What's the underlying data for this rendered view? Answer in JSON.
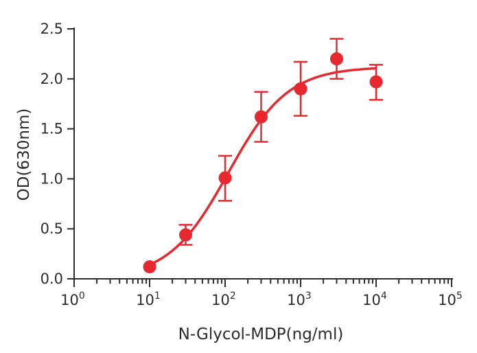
{
  "chart_data": {
    "type": "scatter",
    "title": "",
    "xlabel": "N-Glycol-MDP(ng/ml)",
    "ylabel": "OD(630nm)",
    "xscale": "log",
    "xlim": [
      1,
      100000
    ],
    "ylim": [
      0,
      2.5
    ],
    "grid": false,
    "x_ticks": [
      {
        "base": "10",
        "exp": "0",
        "value": 1
      },
      {
        "base": "10",
        "exp": "1",
        "value": 10
      },
      {
        "base": "10",
        "exp": "2",
        "value": 100
      },
      {
        "base": "10",
        "exp": "3",
        "value": 1000
      },
      {
        "base": "10",
        "exp": "4",
        "value": 10000
      },
      {
        "base": "10",
        "exp": "5",
        "value": 100000
      }
    ],
    "y_ticks": [
      "0.0",
      "0.5",
      "1.0",
      "1.5",
      "2.0",
      "2.5"
    ],
    "color": "#e8282e",
    "series": [
      {
        "x": [
          10,
          30,
          100,
          300,
          1000,
          3000,
          10000
        ],
        "y": [
          0.12,
          0.44,
          1.01,
          1.62,
          1.9,
          2.2,
          1.97
        ],
        "err_low": [
          0.12,
          0.34,
          0.78,
          1.37,
          1.63,
          2.0,
          1.79
        ],
        "err_high": [
          0.12,
          0.54,
          1.23,
          1.87,
          2.17,
          2.4,
          2.14
        ],
        "fit": "sigmoidal curve"
      }
    ]
  }
}
